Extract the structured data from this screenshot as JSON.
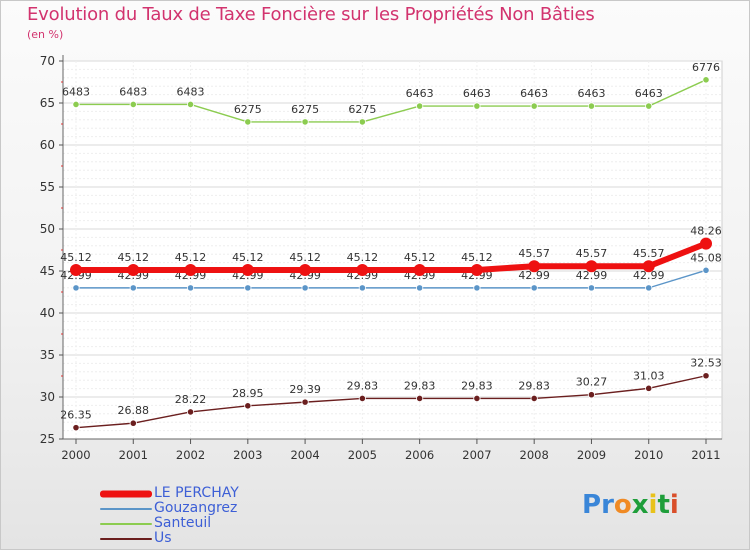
{
  "title": "Evolution du Taux de Taxe Foncière sur les Propriétés Non Bâties",
  "subtitle": "(en %)",
  "logo": {
    "letters": [
      "P",
      "r",
      "o",
      "x",
      "i",
      "t",
      "i"
    ],
    "colors": [
      "#3a86d8",
      "#3a86d8",
      "#f08a24",
      "#1f9e3a",
      "#e8c21a",
      "#1f9e3a",
      "#d94f2a"
    ]
  },
  "chart_data": {
    "type": "line",
    "x": [
      "2000",
      "2001",
      "2002",
      "2003",
      "2004",
      "2005",
      "2006",
      "2007",
      "2008",
      "2009",
      "2010",
      "2011"
    ],
    "ylim": [
      25,
      70
    ],
    "yticks": [
      "25",
      "30",
      "35",
      "40",
      "45",
      "50",
      "55",
      "60",
      "65",
      "70"
    ],
    "grid": true,
    "legend_position": "bottom-left",
    "series": [
      {
        "name": "Santeuil",
        "color": "#8ccc50",
        "values": [
          64.83,
          64.83,
          64.83,
          62.75,
          62.75,
          62.75,
          64.63,
          64.63,
          64.63,
          64.63,
          64.63,
          67.76
        ],
        "labels": [
          "6483",
          "6483",
          "6483",
          "6275",
          "6275",
          "6275",
          "6463",
          "6463",
          "6463",
          "6463",
          "6463",
          "6776"
        ]
      },
      {
        "name": "Gouzangrez",
        "color": "#5b95c8",
        "values": [
          42.99,
          42.99,
          42.99,
          42.99,
          42.99,
          42.99,
          42.99,
          42.99,
          42.99,
          42.99,
          42.99,
          45.08
        ],
        "labels": [
          "42.99",
          "42.99",
          "42.99",
          "42.99",
          "42.99",
          "42.99",
          "42.99",
          "42.99",
          "42.99",
          "42.99",
          "42.99",
          "45.08"
        ]
      },
      {
        "name": "LE PERCHAY",
        "color": "#ee1111",
        "values": [
          45.12,
          45.12,
          45.12,
          45.12,
          45.12,
          45.12,
          45.12,
          45.12,
          45.57,
          45.57,
          45.57,
          48.26
        ],
        "labels": [
          "45.12",
          "45.12",
          "45.12",
          "45.12",
          "45.12",
          "45.12",
          "45.12",
          "45.12",
          "45.57",
          "45.57",
          "45.57",
          "48.26"
        ]
      },
      {
        "name": "Us",
        "color": "#6b1f1f",
        "values": [
          26.35,
          26.88,
          28.22,
          28.95,
          29.39,
          29.83,
          29.83,
          29.83,
          29.83,
          30.27,
          31.03,
          32.53
        ],
        "labels": [
          "26.35",
          "26.88",
          "28.22",
          "28.95",
          "29.39",
          "29.83",
          "29.83",
          "29.83",
          "29.83",
          "30.27",
          "31.03",
          "32.53"
        ]
      }
    ],
    "legend": [
      {
        "name": "LE PERCHAY",
        "color": "#ee1111"
      },
      {
        "name": "Gouzangrez",
        "color": "#5b95c8"
      },
      {
        "name": "Santeuil",
        "color": "#8ccc50"
      },
      {
        "name": "Us",
        "color": "#6b1f1f"
      }
    ]
  }
}
